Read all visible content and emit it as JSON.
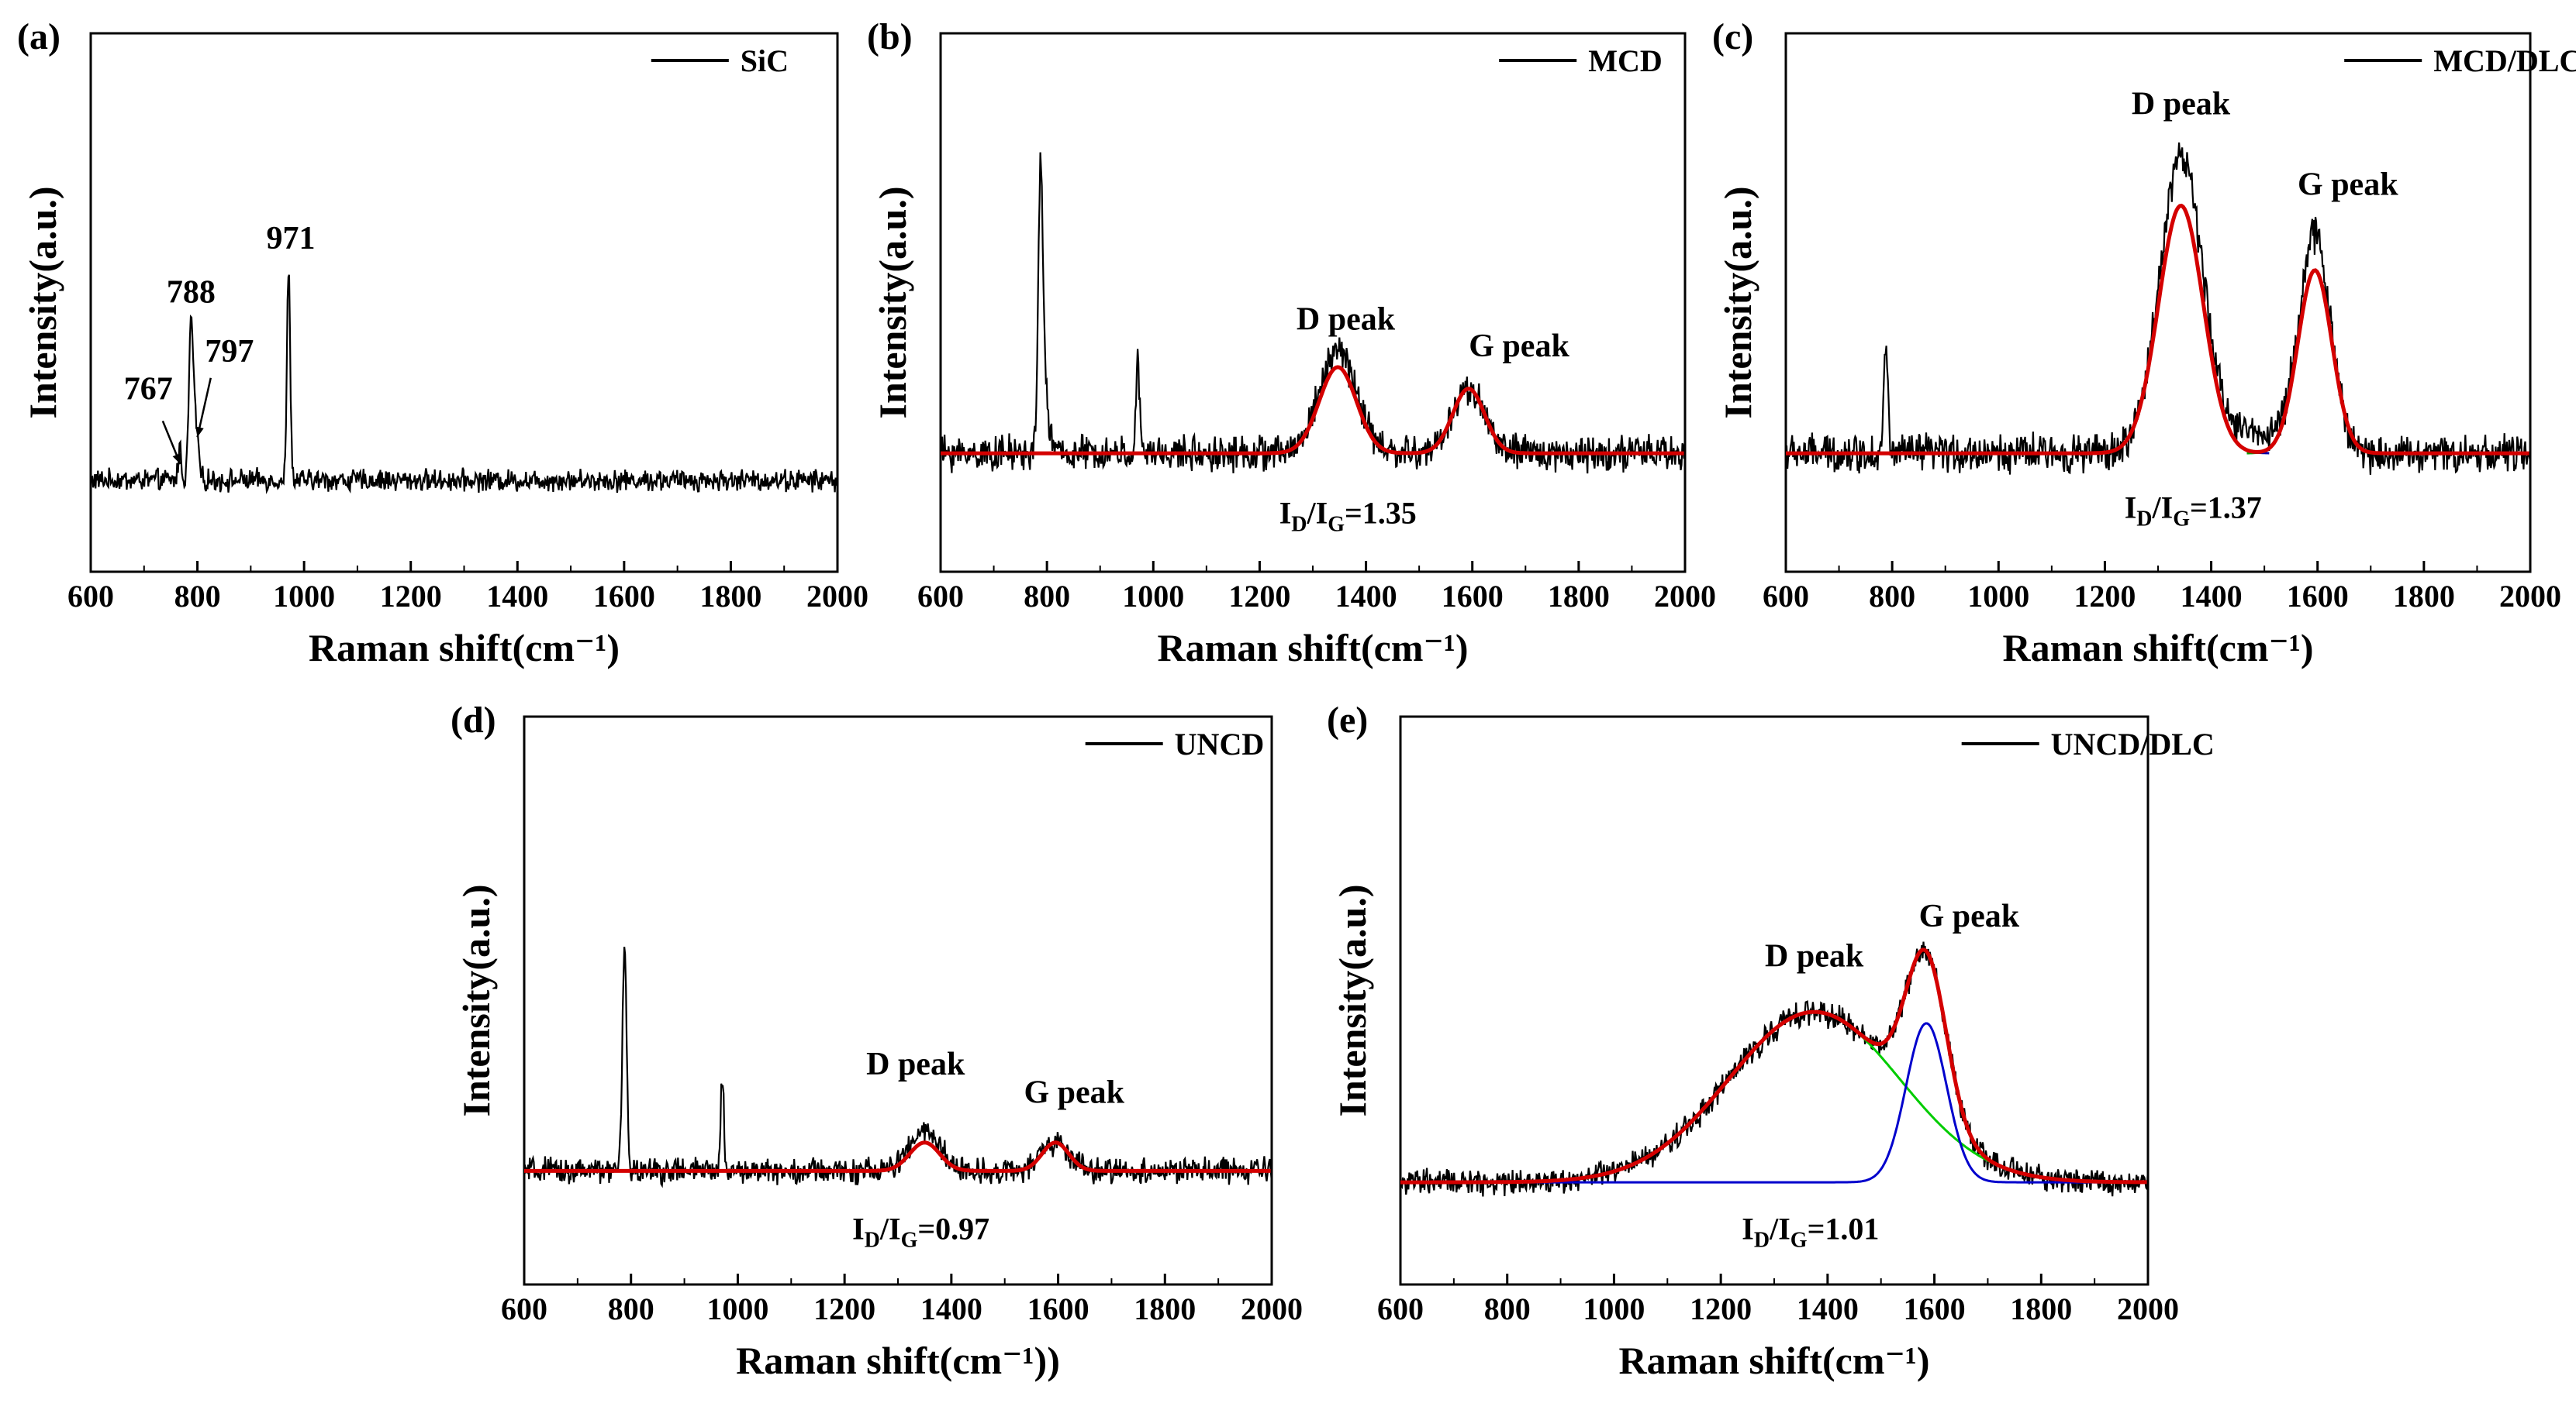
{
  "chart_data": [
    {
      "id": "a",
      "type": "line",
      "panel_label": "(a)",
      "legend": "SiC",
      "xlabel": "Raman shift(cm⁻¹)",
      "ylabel": "Intensity(a.u.)",
      "xlim": [
        600,
        2000
      ],
      "ylim": [
        0,
        100
      ],
      "xticks": [
        600,
        800,
        1000,
        1200,
        1400,
        1600,
        1800,
        2000
      ],
      "baseline": 17,
      "noise": 1.6,
      "raw_peaks": [
        [
          767,
          6,
          3
        ],
        [
          788,
          28,
          4
        ],
        [
          797,
          10,
          5
        ],
        [
          971,
          40,
          3
        ]
      ],
      "fits": [],
      "annotations": [
        {
          "text": "767",
          "x": 708,
          "y": 32
        },
        {
          "text": "788",
          "x": 788,
          "y": 50
        },
        {
          "text": "797",
          "x": 860,
          "y": 39
        },
        {
          "text": "971",
          "x": 975,
          "y": 60
        }
      ],
      "arrows": [
        [
          735,
          28,
          768,
          20
        ],
        [
          825,
          36,
          800,
          25
        ]
      ],
      "ratio": null
    },
    {
      "id": "b",
      "type": "line",
      "panel_label": "(b)",
      "legend": "MCD",
      "xlabel": "Raman shift(cm⁻¹)",
      "ylabel": "Intensity(a.u.)",
      "xlim": [
        600,
        2000
      ],
      "ylim": [
        0,
        100
      ],
      "xticks": [
        600,
        800,
        1000,
        1200,
        1400,
        1600,
        1800,
        2000
      ],
      "baseline": 22,
      "noise": 2.6,
      "raw_peaks": [
        [
          788,
          48,
          4
        ],
        [
          795,
          12,
          8
        ],
        [
          971,
          18,
          3
        ],
        [
          1347,
          19,
          35
        ],
        [
          1593,
          12,
          30
        ]
      ],
      "fits": [
        {
          "kind": "D",
          "center": 1347,
          "height": 16,
          "width": 35
        },
        {
          "kind": "G",
          "center": 1593,
          "height": 12,
          "width": 30
        }
      ],
      "annotations": [
        {
          "text": "D peak",
          "x": 1362,
          "y": 45
        },
        {
          "text": "G peak",
          "x": 1688,
          "y": 40
        }
      ],
      "arrows": [],
      "ratio": {
        "text_main": "I",
        "sub1": "D",
        "mid": "/I",
        "sub2": "G",
        "value": "=1.35",
        "x": 1366,
        "y": 9
      }
    },
    {
      "id": "c",
      "type": "line",
      "panel_label": "(c)",
      "legend": "MCD/DLC",
      "xlabel": "Raman shift(cm⁻¹)",
      "ylabel": "Intensity(a.u.)",
      "xlim": [
        600,
        2000
      ],
      "ylim": [
        0,
        100
      ],
      "xticks": [
        600,
        800,
        1000,
        1200,
        1400,
        1600,
        1800,
        2000
      ],
      "baseline": 22,
      "noise": 2.8,
      "raw_peaks": [
        [
          788,
          19,
          4
        ],
        [
          1343,
          55,
          40
        ],
        [
          1595,
          40,
          30
        ],
        [
          1470,
          4,
          60
        ]
      ],
      "fits": [
        {
          "kind": "D",
          "center": 1343,
          "height": 46,
          "width": 42
        },
        {
          "kind": "G",
          "center": 1595,
          "height": 34,
          "width": 32
        }
      ],
      "annotations": [
        {
          "text": "D peak",
          "x": 1343,
          "y": 85
        },
        {
          "text": "G peak",
          "x": 1657,
          "y": 70
        }
      ],
      "arrows": [],
      "ratio": {
        "text_main": "I",
        "sub1": "D",
        "mid": "/I",
        "sub2": "G",
        "value": "=1.37",
        "x": 1366,
        "y": 10
      }
    },
    {
      "id": "d",
      "type": "line",
      "panel_label": "(d)",
      "legend": "UNCD",
      "xlabel": "Raman shift(cm⁻¹))",
      "ylabel": "Intensity(a.u.)",
      "xlim": [
        600,
        2000
      ],
      "ylim": [
        0,
        100
      ],
      "xticks": [
        600,
        800,
        1000,
        1200,
        1400,
        1600,
        1800,
        2000
      ],
      "baseline": 20,
      "noise": 1.8,
      "raw_peaks": [
        [
          788,
          39,
          4
        ],
        [
          971,
          17,
          3
        ],
        [
          1350,
          7,
          28
        ],
        [
          1595,
          5,
          25
        ]
      ],
      "fits": [
        {
          "kind": "D",
          "center": 1350,
          "height": 5,
          "width": 28
        },
        {
          "kind": "G",
          "center": 1595,
          "height": 5,
          "width": 25
        }
      ],
      "annotations": [
        {
          "text": "D peak",
          "x": 1333,
          "y": 37
        },
        {
          "text": "G peak",
          "x": 1630,
          "y": 32
        }
      ],
      "arrows": [],
      "ratio": {
        "text_main": "I",
        "sub1": "D",
        "mid": "/I",
        "sub2": "G",
        "value": "=0.97",
        "x": 1343,
        "y": 8
      }
    },
    {
      "id": "e",
      "type": "line",
      "panel_label": "(e)",
      "legend": "UNCD/DLC",
      "xlabel": "Raman shift(cm⁻¹)",
      "ylabel": "Intensity(a.u.)",
      "xlim": [
        600,
        2000
      ],
      "ylim": [
        0,
        100
      ],
      "xticks": [
        600,
        800,
        1000,
        1200,
        1400,
        1600,
        1800,
        2000
      ],
      "baseline": 18,
      "noise": 1.8,
      "raw_peaks": [],
      "fits": [
        {
          "kind": "D",
          "center": 1375,
          "height": 30,
          "width": 160
        },
        {
          "kind": "G",
          "center": 1585,
          "height": 28,
          "width": 38
        }
      ],
      "annotations": [
        {
          "text": "D peak",
          "x": 1375,
          "y": 56
        },
        {
          "text": "G peak",
          "x": 1665,
          "y": 63
        }
      ],
      "arrows": [],
      "ratio": {
        "text_main": "I",
        "sub1": "D",
        "mid": "/I",
        "sub2": "G",
        "value": "=1.01",
        "x": 1368,
        "y": 8
      }
    }
  ],
  "colors": {
    "raw": "#000000",
    "fit_sum": "#d40000",
    "D_component": "#00a000",
    "G_component": "#0000aa",
    "D_component_e": "#00cc00",
    "G_component_e": "#0000cc"
  }
}
